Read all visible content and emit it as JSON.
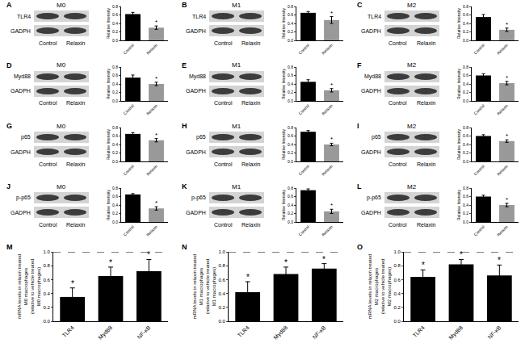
{
  "chart_data": [
    {
      "type": "bar",
      "panel": "A",
      "title": "M0",
      "protein": "TLR4",
      "loading_control": "GADPH",
      "blot_lanes": [
        "Control",
        "Relaxin"
      ],
      "categories": [
        "Control",
        "Relaxin"
      ],
      "values": [
        0.62,
        0.3
      ],
      "errors": [
        0.04,
        0.04
      ],
      "colors": [
        "#000000",
        "#999999"
      ],
      "ylabel": "Relative Intensity",
      "ylim": [
        0,
        0.8
      ],
      "yticks": [
        {
          "value": 0,
          "label": "0.0"
        },
        0.2,
        0.4,
        0.6,
        0.8
      ],
      "annotations": [
        {
          "x": 1,
          "text": "*"
        }
      ]
    },
    {
      "type": "bar",
      "panel": "B",
      "title": "M1",
      "protein": "TLR4",
      "loading_control": "GADPH",
      "blot_lanes": [
        "Control",
        "Relaxin"
      ],
      "categories": [
        "Control",
        "Relaxin"
      ],
      "values": [
        0.65,
        0.48
      ],
      "errors": [
        0.03,
        0.08
      ],
      "colors": [
        "#000000",
        "#999999"
      ],
      "ylabel": "Relative Intensity",
      "ylim": [
        0,
        0.8
      ],
      "yticks": [
        {
          "value": 0,
          "label": "0.0"
        },
        0.2,
        0.4,
        0.6,
        0.8
      ],
      "annotations": [
        {
          "x": 1,
          "text": "*"
        }
      ]
    },
    {
      "type": "bar",
      "panel": "C",
      "title": "M2",
      "protein": "TLR4",
      "loading_control": "GADPH",
      "blot_lanes": [
        "Control",
        "Relaxin"
      ],
      "categories": [
        "Control",
        "Relaxin"
      ],
      "values": [
        0.55,
        0.25
      ],
      "errors": [
        0.06,
        0.04
      ],
      "colors": [
        "#000000",
        "#999999"
      ],
      "ylabel": "Relative Intensity",
      "ylim": [
        0,
        0.8
      ],
      "yticks": [
        {
          "value": 0,
          "label": "0.0"
        },
        0.2,
        0.4,
        0.6,
        0.8
      ],
      "annotations": [
        {
          "x": 1,
          "text": "*"
        }
      ]
    },
    {
      "type": "bar",
      "panel": "D",
      "title": "M0",
      "protein": "Myd88",
      "loading_control": "GADPH",
      "blot_lanes": [
        "Control",
        "Relaxin"
      ],
      "categories": [
        "Control",
        "Relaxin"
      ],
      "values": [
        0.55,
        0.4
      ],
      "errors": [
        0.06,
        0.04
      ],
      "colors": [
        "#000000",
        "#999999"
      ],
      "ylabel": "Relative Intensity",
      "ylim": [
        0,
        0.8
      ],
      "yticks": [
        {
          "value": 0,
          "label": "0.0"
        },
        0.2,
        0.4,
        0.6,
        0.8
      ],
      "annotations": [
        {
          "x": 1,
          "text": "*"
        }
      ]
    },
    {
      "type": "bar",
      "panel": "E",
      "title": "M1",
      "protein": "Myd88",
      "loading_control": "GADPH",
      "blot_lanes": [
        "Control",
        "Relaxin"
      ],
      "categories": [
        "Control",
        "Relaxin"
      ],
      "values": [
        0.45,
        0.25
      ],
      "errors": [
        0.05,
        0.04
      ],
      "colors": [
        "#000000",
        "#999999"
      ],
      "ylabel": "Relative Intensity",
      "ylim": [
        0,
        0.8
      ],
      "yticks": [
        {
          "value": 0,
          "label": "0.0"
        },
        0.2,
        0.4,
        0.6,
        0.8
      ],
      "annotations": [
        {
          "x": 1,
          "text": "*"
        }
      ]
    },
    {
      "type": "bar",
      "panel": "F",
      "title": "M2",
      "protein": "Myd88",
      "loading_control": "GADPH",
      "blot_lanes": [
        "Control",
        "Relaxin"
      ],
      "categories": [
        "Control",
        "Relaxin"
      ],
      "values": [
        0.6,
        0.42
      ],
      "errors": [
        0.04,
        0.04
      ],
      "colors": [
        "#000000",
        "#999999"
      ],
      "ylabel": "Relative Intensity",
      "ylim": [
        0,
        0.8
      ],
      "yticks": [
        {
          "value": 0,
          "label": "0.0"
        },
        0.2,
        0.4,
        0.6,
        0.8
      ],
      "annotations": [
        {
          "x": 1,
          "text": "*"
        }
      ]
    },
    {
      "type": "bar",
      "panel": "G",
      "title": "M0",
      "protein": "p65",
      "loading_control": "GADPH",
      "blot_lanes": [
        "Control",
        "Relaxin"
      ],
      "categories": [
        "Control",
        "Relaxin"
      ],
      "values": [
        0.65,
        0.5
      ],
      "errors": [
        0.03,
        0.04
      ],
      "colors": [
        "#000000",
        "#999999"
      ],
      "ylabel": "Relative Intensity",
      "ylim": [
        0,
        0.8
      ],
      "yticks": [
        {
          "value": 0,
          "label": "0.0"
        },
        0.2,
        0.4,
        0.6,
        0.8
      ],
      "annotations": [
        {
          "x": 1,
          "text": "*"
        }
      ]
    },
    {
      "type": "bar",
      "panel": "H",
      "title": "M1",
      "protein": "p65",
      "loading_control": "GADPH",
      "blot_lanes": [
        "Control",
        "Relaxin"
      ],
      "categories": [
        "Control",
        "Relaxin"
      ],
      "values": [
        0.7,
        0.4
      ],
      "errors": [
        0.03,
        0.03
      ],
      "colors": [
        "#000000",
        "#999999"
      ],
      "ylabel": "Relative Intensity",
      "ylim": [
        0,
        0.8
      ],
      "yticks": [
        {
          "value": 0,
          "label": "0.0"
        },
        0.2,
        0.4,
        0.6,
        0.8
      ],
      "annotations": [
        {
          "x": 1,
          "text": "*"
        }
      ]
    },
    {
      "type": "bar",
      "panel": "I",
      "title": "M2",
      "protein": "p65",
      "loading_control": "GADPH",
      "blot_lanes": [
        "Control",
        "Relaxin"
      ],
      "categories": [
        "Control",
        "Relaxin"
      ],
      "values": [
        0.6,
        0.48
      ],
      "errors": [
        0.03,
        0.03
      ],
      "colors": [
        "#000000",
        "#999999"
      ],
      "ylabel": "Relative Intensity",
      "ylim": [
        0,
        0.8
      ],
      "yticks": [
        {
          "value": 0,
          "label": "0.0"
        },
        0.2,
        0.4,
        0.6,
        0.8
      ],
      "annotations": [
        {
          "x": 1,
          "text": "*"
        }
      ]
    },
    {
      "type": "bar",
      "panel": "J",
      "title": "M0",
      "protein": "p-p65",
      "loading_control": "GADPH",
      "blot_lanes": [
        "Control",
        "Relaxin"
      ],
      "categories": [
        "Control",
        "Relaxin"
      ],
      "values": [
        0.65,
        0.32
      ],
      "errors": [
        0.02,
        0.04
      ],
      "colors": [
        "#000000",
        "#999999"
      ],
      "ylabel": "Relative Intensity",
      "ylim": [
        0,
        0.8
      ],
      "yticks": [
        {
          "value": 0,
          "label": "0.0"
        },
        0.2,
        0.4,
        0.6,
        0.8
      ],
      "annotations": [
        {
          "x": 1,
          "text": "*"
        }
      ]
    },
    {
      "type": "bar",
      "panel": "K",
      "title": "M1",
      "protein": "p-p65",
      "loading_control": "GADPH",
      "blot_lanes": [
        "Control",
        "Relaxin"
      ],
      "categories": [
        "Control",
        "Relaxin"
      ],
      "values": [
        0.75,
        0.25
      ],
      "errors": [
        0.03,
        0.05
      ],
      "colors": [
        "#000000",
        "#999999"
      ],
      "ylabel": "Relative Intensity",
      "ylim": [
        0,
        0.8
      ],
      "yticks": [
        {
          "value": 0,
          "label": "0.0"
        },
        0.2,
        0.4,
        0.6,
        0.8
      ],
      "annotations": [
        {
          "x": 1,
          "text": "*"
        }
      ]
    },
    {
      "type": "bar",
      "panel": "L",
      "title": "M2",
      "protein": "p-p65",
      "loading_control": "GADPH",
      "blot_lanes": [
        "Control",
        "Relaxin"
      ],
      "categories": [
        "Control",
        "Relaxin"
      ],
      "values": [
        0.6,
        0.4
      ],
      "errors": [
        0.03,
        0.04
      ],
      "colors": [
        "#000000",
        "#999999"
      ],
      "ylabel": "Relative Intensity",
      "ylim": [
        0,
        0.8
      ],
      "yticks": [
        {
          "value": 0,
          "label": "0.0"
        },
        0.2,
        0.4,
        0.6,
        0.8
      ],
      "annotations": [
        {
          "x": 1,
          "text": "*"
        }
      ]
    },
    {
      "type": "bar",
      "panel": "M",
      "categories": [
        "TLR4",
        "Myd88",
        "NF-κB"
      ],
      "values": [
        0.35,
        0.65,
        0.72
      ],
      "errors": [
        0.13,
        0.13,
        0.17
      ],
      "color": "#000000",
      "ylabel": [
        "mRNA levels in relaxin treated",
        "M0 macrophages",
        "(relative to vehicle treated",
        "M0 macrophages)"
      ],
      "ylim": [
        0,
        1
      ],
      "yticks": [
        {
          "value": 0,
          "label": "0.0"
        },
        0.2,
        0.4,
        0.6,
        0.8,
        {
          "value": 1,
          "label": "1.0"
        }
      ],
      "reference_line": 1,
      "annotations": [
        {
          "x": 0,
          "text": "*"
        },
        {
          "x": 1,
          "text": "*"
        },
        {
          "x": 2,
          "text": "*"
        }
      ]
    },
    {
      "type": "bar",
      "panel": "N",
      "categories": [
        "TLR4",
        "Myd88",
        "NF-κB"
      ],
      "values": [
        0.42,
        0.68,
        0.76
      ],
      "errors": [
        0.15,
        0.1,
        0.07
      ],
      "color": "#000000",
      "ylabel": [
        "mRNA levels in relaxin treated",
        "M1 macrophages",
        "(relative to vehicle treated",
        "M1 macrophages)"
      ],
      "ylim": [
        0,
        1
      ],
      "yticks": [
        {
          "value": 0,
          "label": "0.0"
        },
        0.2,
        0.4,
        0.6,
        0.8,
        {
          "value": 1,
          "label": "1.0"
        }
      ],
      "reference_line": 1,
      "annotations": [
        {
          "x": 0,
          "text": "*"
        },
        {
          "x": 1,
          "text": "*"
        },
        {
          "x": 2,
          "text": "*"
        }
      ]
    },
    {
      "type": "bar",
      "panel": "O",
      "categories": [
        "TLR4",
        "Myd88",
        "NF-κB"
      ],
      "values": [
        0.64,
        0.82,
        0.66
      ],
      "errors": [
        0.1,
        0.07,
        0.15
      ],
      "color": "#000000",
      "ylabel": [
        "mRNA levels in relaxin treated",
        "M2 macrophages",
        "(relative to vehicle treated",
        "M2 macrophages)"
      ],
      "ylim": [
        0,
        1
      ],
      "yticks": [
        {
          "value": 0,
          "label": "0.0"
        },
        0.2,
        0.4,
        0.6,
        0.8,
        {
          "value": 1,
          "label": "1.0"
        }
      ],
      "reference_line": 1,
      "annotations": [
        {
          "x": 0,
          "text": "*"
        },
        {
          "x": 1,
          "text": "*"
        },
        {
          "x": 2,
          "text": "*"
        }
      ]
    }
  ]
}
